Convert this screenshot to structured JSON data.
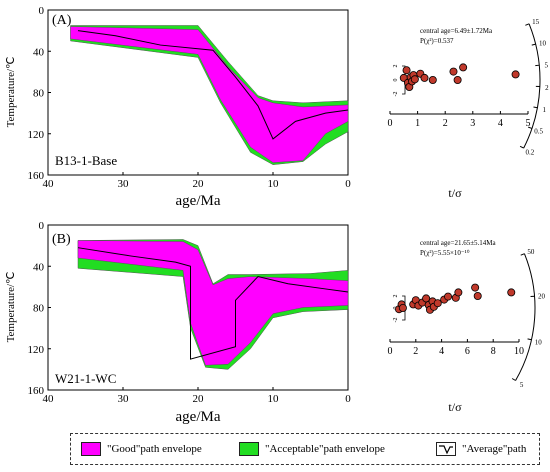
{
  "colors": {
    "good": "#ff00ff",
    "acceptable": "#22dd22",
    "average": "#000000",
    "point_fill": "#c0392b",
    "point_stroke": "#000000"
  },
  "legend": {
    "good": "\"Good\"path envelope",
    "acceptable": "\"Acceptable\"path envelope",
    "average": "\"Average\"path"
  },
  "chart_data": [
    {
      "type": "area",
      "panel_label": "(A)",
      "sample": "B13-1-Base",
      "xlabel": "age/Ma",
      "ylabel": "Temperature/℃",
      "xlim": [
        40,
        0
      ],
      "ylim": [
        0,
        160
      ],
      "xticks": [
        40,
        30,
        20,
        10,
        0
      ],
      "yticks": [
        0,
        40,
        80,
        120,
        160
      ],
      "series": [
        {
          "name": "\"Acceptable\"path envelope",
          "upper": [
            [
              37,
              15
            ],
            [
              20,
              15
            ],
            [
              16,
              50
            ],
            [
              12,
              83
            ],
            [
              10,
              88
            ],
            [
              6,
              90
            ],
            [
              0,
              88
            ]
          ],
          "lower": [
            [
              37,
              30
            ],
            [
              20,
              46
            ],
            [
              17,
              90
            ],
            [
              13,
              138
            ],
            [
              10,
              150
            ],
            [
              6,
              147
            ],
            [
              3,
              130
            ],
            [
              0,
              118
            ]
          ]
        },
        {
          "name": "\"Good\"path envelope",
          "upper": [
            [
              37,
              16
            ],
            [
              20,
              19
            ],
            [
              16,
              55
            ],
            [
              12,
              85
            ],
            [
              10,
              90
            ],
            [
              6,
              94
            ],
            [
              0,
              92
            ]
          ],
          "lower": [
            [
              37,
              28
            ],
            [
              20,
              43
            ],
            [
              17,
              87
            ],
            [
              13,
              133
            ],
            [
              10,
              148
            ],
            [
              6,
              146
            ],
            [
              3,
              120
            ],
            [
              0,
              108
            ]
          ]
        },
        {
          "name": "\"Average\"path",
          "points": [
            [
              36,
              20
            ],
            [
              31,
              25
            ],
            [
              25,
              34
            ],
            [
              18,
              39
            ],
            [
              15,
              65
            ],
            [
              12,
              93
            ],
            [
              10,
              125
            ],
            [
              7,
              108
            ],
            [
              3,
              100
            ],
            [
              0,
              97
            ]
          ]
        }
      ]
    },
    {
      "type": "scatter",
      "subtype": "radial-plot",
      "stats": [
        "central age=6.49±1.72Ma",
        "P(χ²)=0.537"
      ],
      "xlabel": "t/σ",
      "xlim": [
        0,
        5
      ],
      "xticks": [
        0,
        1,
        2,
        3,
        4,
        5
      ],
      "yticks": [
        "-2",
        "0",
        "2"
      ],
      "arc_ticks": [
        15,
        10,
        5,
        2,
        1,
        0.5,
        0.2
      ],
      "points": [
        [
          0.5,
          0.3
        ],
        [
          0.6,
          1.4
        ],
        [
          0.65,
          -0.4
        ],
        [
          0.7,
          -1.0
        ],
        [
          0.75,
          0.4
        ],
        [
          0.8,
          -0.2
        ],
        [
          0.85,
          0.7
        ],
        [
          0.9,
          0.1
        ],
        [
          1.1,
          0.9
        ],
        [
          1.25,
          0.3
        ],
        [
          1.55,
          0.0
        ],
        [
          2.3,
          1.2
        ],
        [
          2.45,
          0.0
        ],
        [
          2.65,
          1.8
        ],
        [
          4.55,
          0.8
        ]
      ]
    },
    {
      "type": "area",
      "panel_label": "(B)",
      "sample": "W21-1-WC",
      "xlabel": "age/Ma",
      "ylabel": "Temperature/℃",
      "xlim": [
        40,
        0
      ],
      "ylim": [
        0,
        160
      ],
      "xticks": [
        40,
        30,
        20,
        10,
        0
      ],
      "yticks": [
        0,
        40,
        80,
        120,
        160
      ],
      "series": [
        {
          "name": "\"Acceptable\"path envelope",
          "upper": [
            [
              36,
              15
            ],
            [
              22,
              14
            ],
            [
              20,
              20
            ],
            [
              18,
              57
            ],
            [
              16,
              48
            ],
            [
              13,
              48
            ],
            [
              5,
              47
            ],
            [
              0,
              44
            ]
          ],
          "lower": [
            [
              36,
              42
            ],
            [
              22,
              50
            ],
            [
              21,
              100
            ],
            [
              19,
              138
            ],
            [
              16,
              140
            ],
            [
              13,
              120
            ],
            [
              10,
              90
            ],
            [
              6,
              84
            ],
            [
              0,
              82
            ]
          ]
        },
        {
          "name": "\"Good\"path envelope",
          "upper": [
            [
              36,
              15
            ],
            [
              22,
              16
            ],
            [
              20,
              24
            ],
            [
              18,
              58
            ],
            [
              16,
              52
            ],
            [
              13,
              50
            ],
            [
              5,
              52
            ],
            [
              0,
              54
            ]
          ],
          "lower": [
            [
              36,
              32
            ],
            [
              22,
              44
            ],
            [
              21,
              95
            ],
            [
              19,
              136
            ],
            [
              16,
              135
            ],
            [
              13,
              114
            ],
            [
              10,
              86
            ],
            [
              6,
              80
            ],
            [
              0,
              78
            ]
          ]
        },
        {
          "name": "\"Average\"path",
          "points": [
            [
              36,
              22
            ],
            [
              29,
              30
            ],
            [
              23,
              36
            ],
            [
              21,
              40
            ],
            [
              21,
              130
            ],
            [
              15,
              118
            ],
            [
              15,
              73
            ],
            [
              12,
              50
            ],
            [
              8,
              57
            ],
            [
              3,
              62
            ],
            [
              0,
              65
            ]
          ]
        }
      ]
    },
    {
      "type": "scatter",
      "subtype": "radial-plot",
      "stats": [
        "central age=21.65±5.14Ma",
        "P(χ²)=5.55×10⁻¹⁰"
      ],
      "xlabel": "t/σ",
      "xlim": [
        0,
        10
      ],
      "xticks": [
        0,
        2,
        4,
        6,
        8,
        10
      ],
      "yticks": [
        "-2",
        "0",
        "2"
      ],
      "arc_ticks": [
        50,
        20,
        10,
        5
      ],
      "points": [
        [
          0.7,
          -0.2
        ],
        [
          0.9,
          0.6
        ],
        [
          1.0,
          0.0
        ],
        [
          1.8,
          0.6
        ],
        [
          2.0,
          1.3
        ],
        [
          2.2,
          0.4
        ],
        [
          2.5,
          0.9
        ],
        [
          2.8,
          1.6
        ],
        [
          3.0,
          0.5
        ],
        [
          3.1,
          -0.3
        ],
        [
          3.3,
          1.1
        ],
        [
          3.4,
          0.2
        ],
        [
          3.7,
          0.8
        ],
        [
          4.2,
          1.4
        ],
        [
          4.5,
          1.9
        ],
        [
          5.1,
          1.7
        ],
        [
          5.3,
          2.6
        ],
        [
          6.6,
          3.4
        ],
        [
          6.8,
          2.0
        ],
        [
          9.4,
          2.6
        ]
      ]
    }
  ]
}
